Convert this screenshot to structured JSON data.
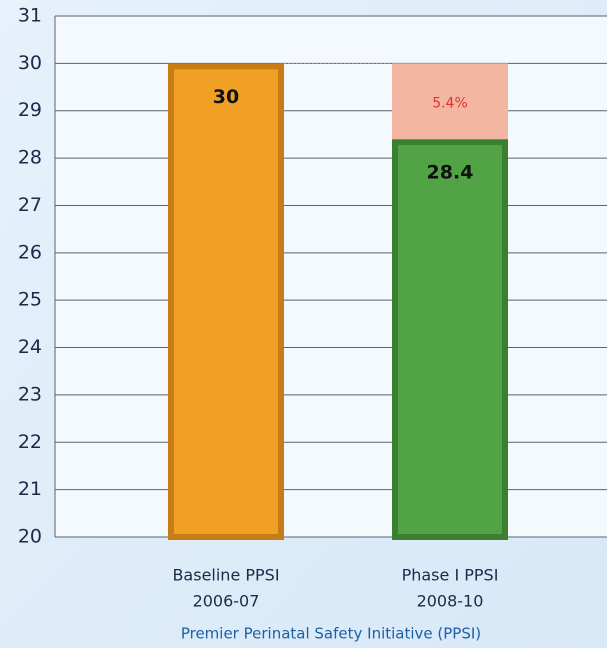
{
  "chart_data": {
    "type": "bar",
    "categories": [
      [
        "Baseline PPSI",
        "2006-07"
      ],
      [
        "Phase I PPSI",
        "2008-10"
      ]
    ],
    "values": [
      30,
      28.4
    ],
    "colors": [
      "#f0a024",
      "#52a346"
    ],
    "edge_colors": [
      "#c77c16",
      "#3b7f31"
    ],
    "gap_color": "#f3b6a3",
    "annotation": "5.4%",
    "annotation_color": "#e3322a",
    "xlabel": "Premier Perinatal Safety Initiative (PPSI)",
    "ylim": [
      20,
      31
    ],
    "yticks": [
      20,
      21,
      22,
      23,
      24,
      25,
      26,
      27,
      28,
      29,
      30,
      31
    ],
    "grid": true
  }
}
